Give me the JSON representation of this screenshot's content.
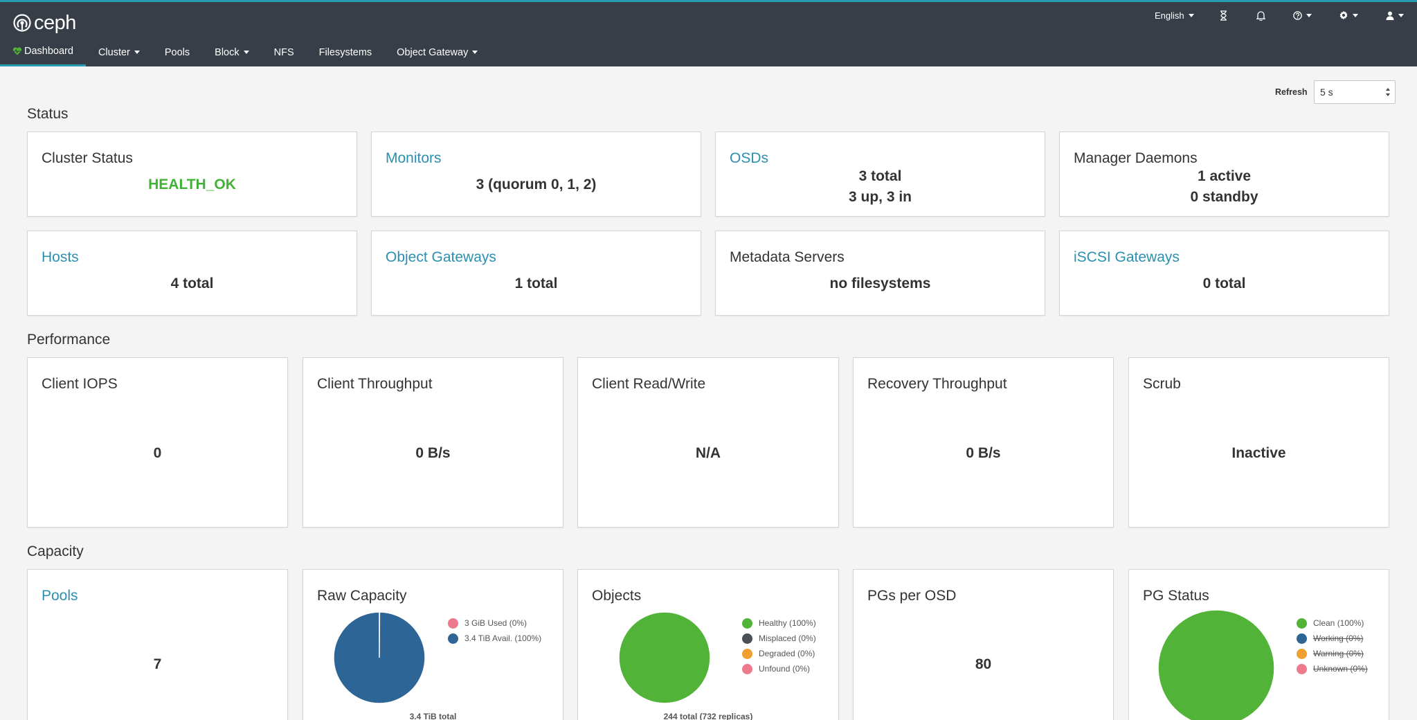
{
  "brand": {
    "name": "ceph"
  },
  "header": {
    "language": "English",
    "icons": [
      "task-hourglass-icon",
      "bell-icon",
      "question-icon",
      "gear-icon",
      "user-icon"
    ]
  },
  "nav": {
    "items": [
      {
        "label": "Dashboard",
        "active": true,
        "dropdown": false
      },
      {
        "label": "Cluster",
        "dropdown": true
      },
      {
        "label": "Pools",
        "dropdown": false
      },
      {
        "label": "Block",
        "dropdown": true
      },
      {
        "label": "NFS",
        "dropdown": false
      },
      {
        "label": "Filesystems",
        "dropdown": false
      },
      {
        "label": "Object Gateway",
        "dropdown": true
      }
    ]
  },
  "refresh": {
    "label": "Refresh",
    "value": "5 s"
  },
  "status": {
    "title": "Status",
    "cluster_status": {
      "title": "Cluster Status",
      "value": "HEALTH_OK"
    },
    "monitors": {
      "title": "Monitors",
      "value": "3 (quorum 0, 1, 2)"
    },
    "osds": {
      "title": "OSDs",
      "line1": "3 total",
      "line2": "3 up, 3 in"
    },
    "manager_daemons": {
      "title": "Manager Daemons",
      "line1": "1 active",
      "line2": "0 standby"
    },
    "hosts": {
      "title": "Hosts",
      "value": "4 total"
    },
    "object_gateways": {
      "title": "Object Gateways",
      "value": "1 total"
    },
    "metadata_servers": {
      "title": "Metadata Servers",
      "value": "no filesystems"
    },
    "iscsi_gateways": {
      "title": "iSCSI Gateways",
      "value": "0 total"
    }
  },
  "performance": {
    "title": "Performance",
    "client_iops": {
      "title": "Client IOPS",
      "value": "0"
    },
    "client_throughput": {
      "title": "Client Throughput",
      "value": "0 B/s"
    },
    "client_read_write": {
      "title": "Client Read/Write",
      "value": "N/A"
    },
    "recovery_throughput": {
      "title": "Recovery Throughput",
      "value": "0 B/s"
    },
    "scrub": {
      "title": "Scrub",
      "value": "Inactive"
    }
  },
  "capacity": {
    "title": "Capacity",
    "pools": {
      "title": "Pools",
      "value": "7"
    },
    "raw_capacity": {
      "title": "Raw Capacity",
      "legend": [
        "3 GiB Used (0%)",
        "3.4 TiB Avail. (100%)"
      ],
      "caption": "3.4 TiB total"
    },
    "objects": {
      "title": "Objects",
      "legend": [
        "Healthy (100%)",
        "Misplaced (0%)",
        "Degraded (0%)",
        "Unfound (0%)"
      ],
      "caption": "244 total (732 replicas)"
    },
    "pgs_per_osd": {
      "title": "PGs per OSD",
      "value": "80"
    },
    "pg_status": {
      "title": "PG Status",
      "legend": [
        "Clean (100%)",
        "Working (0%)",
        "Warning (0%)",
        "Unknown (0%)"
      ]
    }
  },
  "chart_data": [
    {
      "type": "pie",
      "categories": [
        "3 GiB Used (0%)",
        "3.4 TiB Avail. (100%)"
      ],
      "values": [
        0.1,
        99.9
      ],
      "colors": [
        "#ec7a8c",
        "#2d6597"
      ]
    },
    {
      "type": "pie",
      "categories": [
        "Healthy (100%)",
        "Misplaced (0%)",
        "Degraded (0%)",
        "Unfound (0%)"
      ],
      "values": [
        100,
        0,
        0,
        0
      ],
      "colors": [
        "#51b337",
        "#4b4f57",
        "#f0a030",
        "#ec7a8c"
      ]
    },
    {
      "type": "pie",
      "categories": [
        "Clean (100%)",
        "Working (0%)",
        "Warning (0%)",
        "Unknown (0%)"
      ],
      "values": [
        100,
        0,
        0,
        0
      ],
      "colors": [
        "#51b337",
        "#2d6597",
        "#f0a030",
        "#ec7a8c"
      ]
    }
  ],
  "colors": {
    "navbar": "#373e47",
    "accent": "#2a9cb5",
    "link": "#2b8fb0",
    "health_ok": "#41b235"
  }
}
